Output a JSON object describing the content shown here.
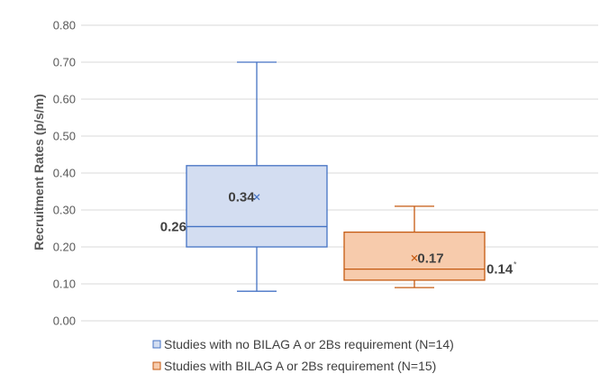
{
  "chart_data": {
    "type": "boxplot",
    "title": "",
    "xlabel": "",
    "ylabel": "Recruitment Rates (p/s/m)",
    "ylim": [
      0,
      0.8
    ],
    "yticks": [
      "0.00",
      "0.10",
      "0.20",
      "0.30",
      "0.40",
      "0.50",
      "0.60",
      "0.70",
      "0.80"
    ],
    "grid": true,
    "legend_position": "bottom",
    "series": [
      {
        "name": "Studies with no BILAG A or 2Bs requirement (N=14)",
        "color": "#4472c4",
        "fill": "#d3ddf1",
        "min": 0.08,
        "q1": 0.2,
        "median": 0.255,
        "q3": 0.42,
        "max": 0.7,
        "mean": 0.335,
        "median_label": "0.26",
        "mean_label": "0.34",
        "median_sup": ""
      },
      {
        "name": "Studies with BILAG A or 2Bs requirement (N=15)",
        "color": "#c55a11",
        "fill": "#f7cbac",
        "min": 0.09,
        "q1": 0.11,
        "median": 0.14,
        "q3": 0.24,
        "max": 0.31,
        "mean": 0.17,
        "median_label": "0.14",
        "mean_label": "0.17",
        "median_sup": "*"
      }
    ]
  },
  "legend": {
    "items": [
      "Studies with no BILAG A or 2Bs requirement (N=14)",
      "Studies with BILAG A or 2Bs requirement (N=15)"
    ]
  }
}
